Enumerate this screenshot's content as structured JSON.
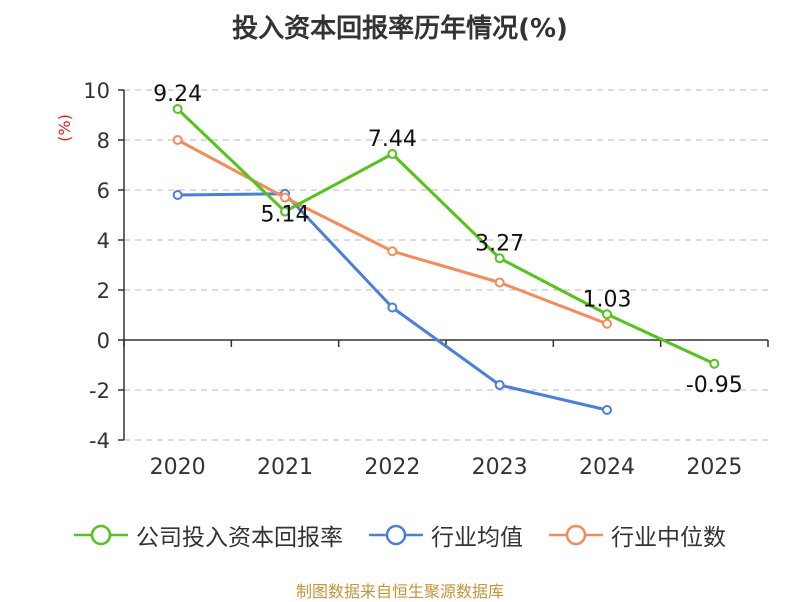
{
  "chart_data": {
    "type": "line",
    "title": "投入资本回报率历年情况(%)",
    "ylabel": "(%)",
    "categories": [
      "2020",
      "2021",
      "2022",
      "2023",
      "2024",
      "2025"
    ],
    "ylim": [
      -4,
      10
    ],
    "yticks": [
      10,
      8,
      6,
      4,
      2,
      0,
      -2,
      -4
    ],
    "ytick_labels": [
      "10",
      "8",
      "6",
      "4",
      "2",
      "0",
      "-2",
      "-4"
    ],
    "grid": true,
    "legend_position": "bottom",
    "series": [
      {
        "name": "公司投入资本回报率",
        "color": "#52c41a",
        "values": [
          9.24,
          5.14,
          7.44,
          3.27,
          1.03,
          -0.95
        ],
        "labels": [
          "9.24",
          "5.14",
          "7.44",
          "3.27",
          "1.03",
          "-0.95"
        ]
      },
      {
        "name": "行业均值",
        "color": "#4a7fdb",
        "values": [
          5.8,
          5.85,
          1.3,
          -1.8,
          -2.8,
          null
        ]
      },
      {
        "name": "行业中位数",
        "color": "#f58b59",
        "values": [
          8.0,
          5.7,
          3.55,
          2.3,
          0.65,
          null
        ]
      }
    ]
  },
  "source": "制图数据来自恒生聚源数据库"
}
